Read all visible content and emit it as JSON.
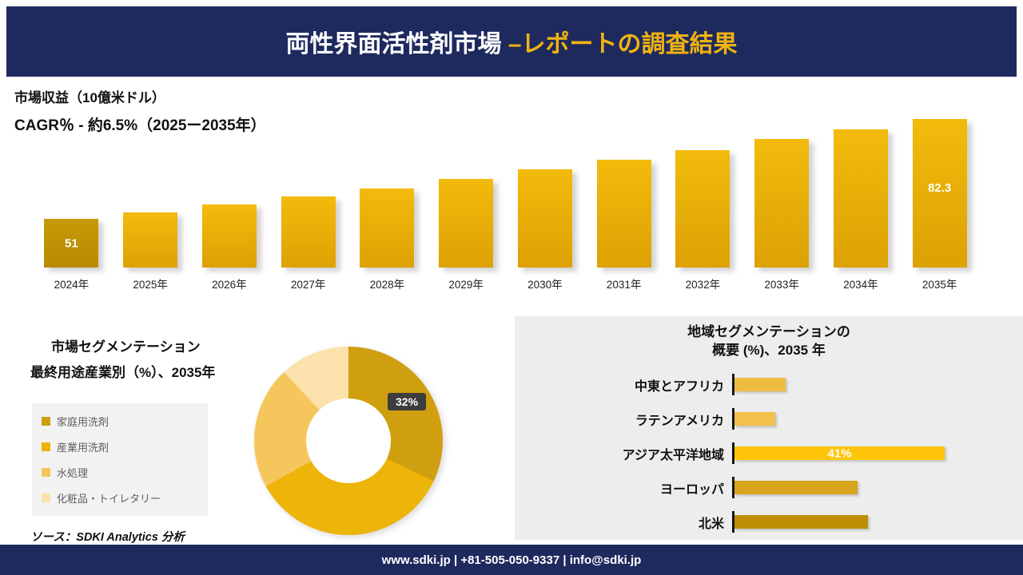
{
  "header": {
    "title_main": "両性界面活性剤市場 ",
    "title_accent": "–レポートの調査結果"
  },
  "revenue": {
    "unit_label": "市場収益（10億米ドル）",
    "cagr_label": "CAGR％ - 約6.5%（2025ー2035年）"
  },
  "chart_data": [
    {
      "id": "revenue-by-year",
      "type": "bar",
      "title": "市場収益（10億米ドル）",
      "categories": [
        "2024年",
        "2025年",
        "2026年",
        "2027年",
        "2028年",
        "2029年",
        "2030年",
        "2031年",
        "2032年",
        "2033年",
        "2034年",
        "2035年"
      ],
      "values": [
        51,
        53,
        55.5,
        58,
        60.5,
        63.5,
        66.5,
        69.5,
        72.5,
        76,
        79,
        82.3
      ],
      "ylim": [
        51,
        82.3
      ],
      "data_labels": {
        "first": "51",
        "last": "82.3"
      },
      "bar_color": "#e9ae06",
      "bar_color_first": "#bd8d03",
      "legend_position": "none",
      "grid": false
    },
    {
      "id": "end-use-segmentation",
      "type": "pie",
      "title": "市場セグメンテーション 最終用途産業別（%）、2035年",
      "labels": [
        "家庭用洗剤",
        "産業用洗剤",
        "水処理",
        "化粧品・トイレタリー"
      ],
      "values": [
        32,
        35,
        21,
        12
      ],
      "colors": [
        "#cf9f10",
        "#edb409",
        "#f5c65c",
        "#fbe2ac"
      ],
      "callout": {
        "label": "32%"
      },
      "legend_position": "left"
    },
    {
      "id": "regional-overview",
      "type": "bar-horizontal",
      "title": "地域セグメンテーションの概要 (%)、2035 年",
      "categories": [
        "中東とアフリカ",
        "ラテンアメリカ",
        "アジア太平洋地域",
        "ヨーロッパ",
        "北米"
      ],
      "values": [
        10,
        8,
        41,
        24,
        26
      ],
      "xlim": [
        0,
        41
      ],
      "colors": [
        "#eebc3f",
        "#f3c149",
        "#ffc50a",
        "#d9a41d",
        "#bd8d03"
      ],
      "data_label": {
        "index": 2,
        "text": "41%"
      },
      "grid": false
    }
  ],
  "segmentation": {
    "heading": "市場セグメンテーション",
    "subheading": "最終用途産業別（%）、2035年"
  },
  "regional": {
    "title_line1": "地域セグメンテーションの",
    "title_line2": "概要 (%)、2035 年"
  },
  "source": {
    "text": "ソース：SDKI Analytics 分析"
  },
  "footer": {
    "text": "www.sdki.jp | +81-505-050-9337 | info@sdki.jp"
  },
  "colors": {
    "navy": "#1e2a5e",
    "accent_gold": "#f0b310",
    "panel_gray": "#ededed"
  }
}
